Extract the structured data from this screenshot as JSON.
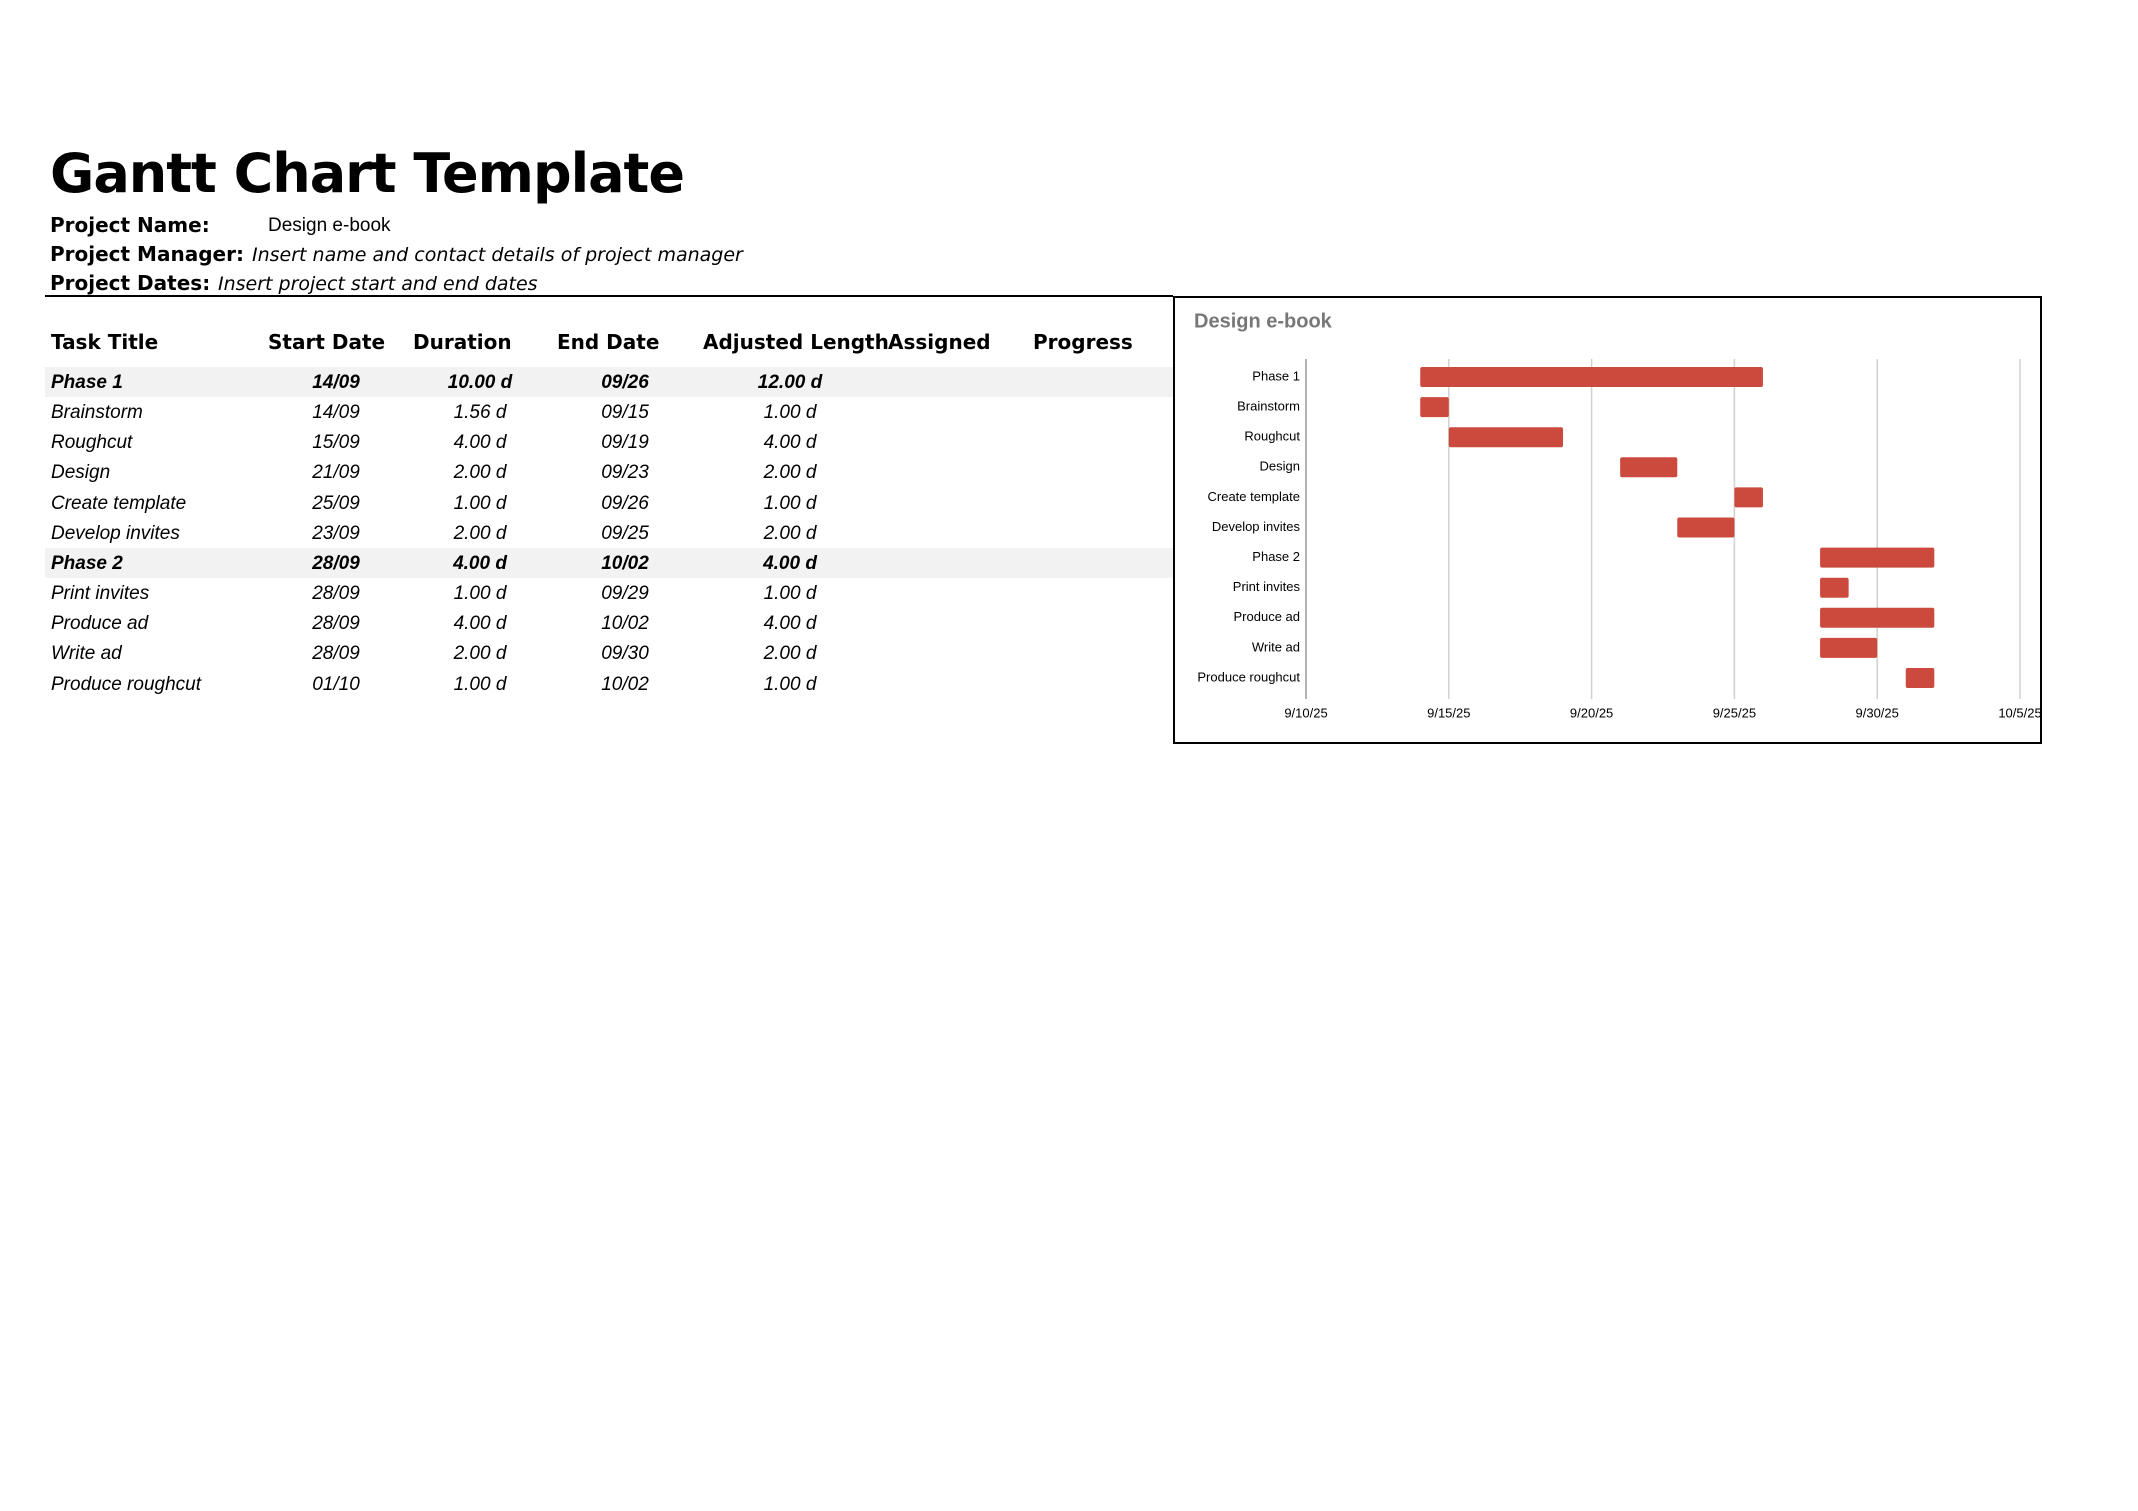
{
  "header": {
    "title": "Gantt Chart Template",
    "fields": [
      {
        "label": "Project Name:",
        "value": "Design e-book",
        "italic": false
      },
      {
        "label": "Project Manager:",
        "value": "Insert name and contact details of project manager",
        "italic": true
      },
      {
        "label": "Project Dates:",
        "value": "Insert project start and end dates",
        "italic": true
      }
    ]
  },
  "table": {
    "columns": [
      "Task Title",
      "Start Date",
      "Duration",
      "End Date",
      "Adjusted Length",
      "Assigned",
      "Progress"
    ],
    "rows": [
      {
        "cells": [
          "Phase 1",
          "14/09",
          "10.00 d",
          "09/26",
          "12.00 d"
        ],
        "bold": true
      },
      {
        "cells": [
          "Brainstorm",
          "14/09",
          "1.56 d",
          "09/15",
          "1.00 d"
        ],
        "bold": false
      },
      {
        "cells": [
          "Roughcut",
          "15/09",
          "4.00 d",
          "09/19",
          "4.00 d"
        ],
        "bold": false
      },
      {
        "cells": [
          "Design",
          "21/09",
          "2.00 d",
          "09/23",
          "2.00 d"
        ],
        "bold": false
      },
      {
        "cells": [
          "Create template",
          "25/09",
          "1.00 d",
          "09/26",
          "1.00 d"
        ],
        "bold": false
      },
      {
        "cells": [
          "Develop invites",
          "23/09",
          "2.00 d",
          "09/25",
          "2.00 d"
        ],
        "bold": false
      },
      {
        "cells": [
          "Phase 2",
          "28/09",
          "4.00 d",
          "10/02",
          "4.00 d"
        ],
        "bold": true
      },
      {
        "cells": [
          "Print invites",
          "28/09",
          "1.00 d",
          "09/29",
          "1.00 d"
        ],
        "bold": false
      },
      {
        "cells": [
          "Produce ad",
          "28/09",
          "4.00 d",
          "10/02",
          "4.00 d"
        ],
        "bold": false
      },
      {
        "cells": [
          "Write ad",
          "28/09",
          "2.00 d",
          "09/30",
          "2.00 d"
        ],
        "bold": false
      },
      {
        "cells": [
          "Produce roughcut",
          "01/10",
          "1.00 d",
          "10/02",
          "1.00 d"
        ],
        "bold": false
      }
    ]
  },
  "chart_data": {
    "type": "gantt",
    "title": "Design e-book",
    "color": "#cc4a3d",
    "grid": true,
    "categories": [
      "Phase 1",
      "Brainstorm",
      "Roughcut",
      "Design",
      "Create template",
      "Develop invites",
      "Phase 2",
      "Print invites",
      "Produce ad",
      "Write ad",
      "Produce roughcut"
    ],
    "start": [
      "2025-09-14",
      "2025-09-14",
      "2025-09-15",
      "2025-09-21",
      "2025-09-25",
      "2025-09-23",
      "2025-09-28",
      "2025-09-28",
      "2025-09-28",
      "2025-09-28",
      "2025-10-01"
    ],
    "duration": [
      12,
      1,
      4,
      2,
      1,
      2,
      4,
      1,
      4,
      2,
      1
    ],
    "xlim": [
      "2025-09-10",
      "2025-10-05"
    ],
    "xticks": [
      {
        "value": "2025-09-10",
        "label": "9/10/25"
      },
      {
        "value": "2025-09-15",
        "label": "9/15/25"
      },
      {
        "value": "2025-09-20",
        "label": "9/20/25"
      },
      {
        "value": "2025-09-25",
        "label": "9/25/25"
      },
      {
        "value": "2025-09-30",
        "label": "9/30/25"
      },
      {
        "value": "2025-10-05",
        "label": "10/5/25"
      }
    ]
  }
}
